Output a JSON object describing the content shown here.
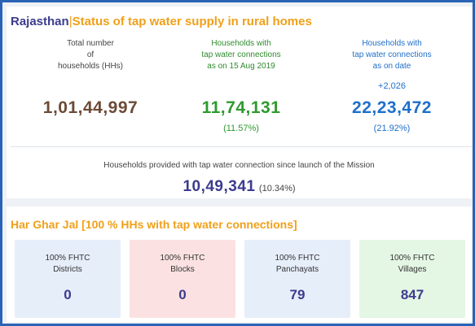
{
  "header": {
    "state": "Rajasthan",
    "separator": "|",
    "subtitle": "Status of tap water supply in rural homes"
  },
  "stats": {
    "total": {
      "label_lines": [
        "Total number",
        "of",
        "households (HHs)"
      ],
      "value": "1,01,44,997"
    },
    "baseline": {
      "label_lines": [
        "Households with",
        "tap water connections",
        "as on 15 Aug 2019"
      ],
      "value": "11,74,131",
      "percent": "(11.57%)"
    },
    "current": {
      "label_lines": [
        "Households with",
        "tap water connections",
        "as on date"
      ],
      "delta": "+2,026",
      "value": "22,23,472",
      "percent": "(21.92%)"
    }
  },
  "mission": {
    "label": "Households provided with tap water connection since launch of the Mission",
    "value": "10,49,341",
    "percent": "(10.34%)"
  },
  "har_ghar_jal": {
    "title": "Har Ghar Jal [100 % HHs with tap water connections]",
    "tiles": [
      {
        "line1": "100% FHTC",
        "line2": "Districts",
        "value": "0"
      },
      {
        "line1": "100% FHTC",
        "line2": "Blocks",
        "value": "0"
      },
      {
        "line1": "100% FHTC",
        "line2": "Panchayats",
        "value": "79"
      },
      {
        "line1": "100% FHTC",
        "line2": "Villages",
        "value": "847"
      }
    ]
  },
  "colors": {
    "frame": "#2a63b6",
    "title_orange": "#f0a019",
    "navy": "#3b3b8e",
    "green": "#2e9a2e",
    "blue": "#1f6fc9",
    "brown": "#6b4a37"
  }
}
